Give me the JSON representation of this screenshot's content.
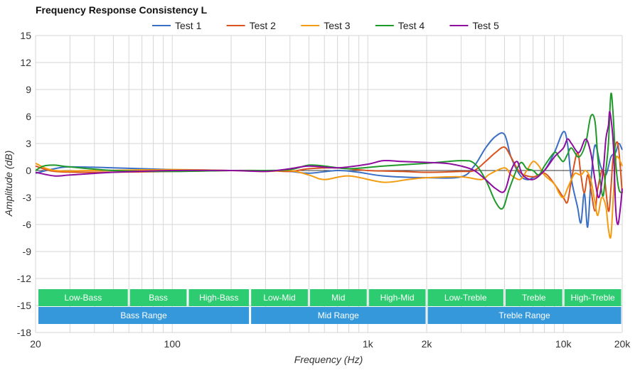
{
  "chart_data": {
    "type": "line",
    "title": "Frequency Response Consistency L",
    "xlabel": "Frequency (Hz)",
    "ylabel": "Amplitude (dB)",
    "xscale": "log",
    "xlim": [
      20,
      20000
    ],
    "ylim": [
      -18,
      15
    ],
    "grid": true,
    "legend_position": "top-center",
    "y_ticks": [
      15,
      12,
      9,
      6,
      3,
      0,
      -3,
      -6,
      -9,
      -12,
      -15,
      -18
    ],
    "x_tick_labels": [
      {
        "value": 20,
        "label": "20"
      },
      {
        "value": 100,
        "label": "100"
      },
      {
        "value": 1000,
        "label": "1k"
      },
      {
        "value": 2000,
        "label": "2k"
      },
      {
        "value": 10000,
        "label": "10k"
      },
      {
        "value": 20000,
        "label": "20k"
      }
    ],
    "bands": [
      {
        "label": "Low-Bass",
        "from": 20,
        "to": 60,
        "color": "#2ecc71",
        "row": "upper"
      },
      {
        "label": "Bass",
        "from": 60,
        "to": 120,
        "color": "#2ecc71",
        "row": "upper"
      },
      {
        "label": "High-Bass",
        "from": 120,
        "to": 250,
        "color": "#2ecc71",
        "row": "upper"
      },
      {
        "label": "Low-Mid",
        "from": 250,
        "to": 500,
        "color": "#2ecc71",
        "row": "upper"
      },
      {
        "label": "Mid",
        "from": 500,
        "to": 1000,
        "color": "#2ecc71",
        "row": "upper"
      },
      {
        "label": "High-Mid",
        "from": 1000,
        "to": 2000,
        "color": "#2ecc71",
        "row": "upper"
      },
      {
        "label": "Low-Treble",
        "from": 2000,
        "to": 5000,
        "color": "#2ecc71",
        "row": "upper"
      },
      {
        "label": "Treble",
        "from": 5000,
        "to": 10000,
        "color": "#2ecc71",
        "row": "upper"
      },
      {
        "label": "High-Treble",
        "from": 10000,
        "to": 20000,
        "color": "#2ecc71",
        "row": "upper"
      },
      {
        "label": "Bass Range",
        "from": 20,
        "to": 250,
        "color": "#3498db",
        "row": "lower"
      },
      {
        "label": "Mid Range",
        "from": 250,
        "to": 2000,
        "color": "#3498db",
        "row": "lower"
      },
      {
        "label": "Treble Range",
        "from": 2000,
        "to": 20000,
        "color": "#3498db",
        "row": "lower"
      }
    ],
    "series": [
      {
        "name": "Test 1",
        "color": "#3b6fc4",
        "points": [
          [
            20,
            -0.3
          ],
          [
            25,
            0.2
          ],
          [
            30,
            0.4
          ],
          [
            50,
            0.3
          ],
          [
            100,
            0.1
          ],
          [
            200,
            0
          ],
          [
            300,
            0
          ],
          [
            400,
            -0.1
          ],
          [
            500,
            -0.3
          ],
          [
            700,
            0
          ],
          [
            900,
            -0.2
          ],
          [
            1200,
            -0.6
          ],
          [
            2000,
            -0.8
          ],
          [
            3000,
            -0.7
          ],
          [
            3500,
            0.5
          ],
          [
            4000,
            2.5
          ],
          [
            4500,
            3.8
          ],
          [
            5000,
            4
          ],
          [
            5400,
            1.5
          ],
          [
            6000,
            -0.5
          ],
          [
            6500,
            -1
          ],
          [
            7000,
            -0.8
          ],
          [
            8000,
            0
          ],
          [
            9000,
            2
          ],
          [
            10000,
            4.3
          ],
          [
            10500,
            3
          ],
          [
            11000,
            -1
          ],
          [
            11800,
            -4
          ],
          [
            12300,
            -5.8
          ],
          [
            12800,
            -2.5
          ],
          [
            13300,
            -6.3
          ],
          [
            13800,
            -1.5
          ],
          [
            14500,
            2.8
          ],
          [
            15500,
            0.5
          ],
          [
            16500,
            -0.5
          ],
          [
            17500,
            1.5
          ],
          [
            18500,
            2
          ],
          [
            19200,
            3
          ],
          [
            20000,
            2.3
          ]
        ]
      },
      {
        "name": "Test 2",
        "color": "#d9531e",
        "points": [
          [
            20,
            0.5
          ],
          [
            25,
            -0.1
          ],
          [
            40,
            -0.2
          ],
          [
            100,
            -0.1
          ],
          [
            200,
            0
          ],
          [
            300,
            0
          ],
          [
            400,
            -0.1
          ],
          [
            500,
            0.2
          ],
          [
            700,
            0.3
          ],
          [
            1000,
            0
          ],
          [
            1500,
            -0.1
          ],
          [
            2000,
            -0.2
          ],
          [
            3000,
            -0.1
          ],
          [
            3500,
            0
          ],
          [
            4000,
            1
          ],
          [
            4500,
            2
          ],
          [
            5000,
            2.6
          ],
          [
            5400,
            1.5
          ],
          [
            6000,
            -0.2
          ],
          [
            7000,
            -0.7
          ],
          [
            8000,
            -0.3
          ],
          [
            9000,
            -1.5
          ],
          [
            10000,
            -3
          ],
          [
            10500,
            -3.5
          ],
          [
            11000,
            -1
          ],
          [
            11800,
            2
          ],
          [
            12300,
            -0.5
          ],
          [
            12800,
            -2.5
          ],
          [
            13300,
            -0.5
          ],
          [
            13800,
            -2
          ],
          [
            14500,
            -4.5
          ],
          [
            15000,
            -2
          ],
          [
            16000,
            0
          ],
          [
            17000,
            -4.5
          ],
          [
            17500,
            -2
          ],
          [
            18000,
            1.5
          ],
          [
            19000,
            3
          ],
          [
            20000,
            -2.5
          ]
        ]
      },
      {
        "name": "Test 3",
        "color": "#f39c12",
        "points": [
          [
            20,
            0.8
          ],
          [
            25,
            0
          ],
          [
            40,
            0
          ],
          [
            100,
            0.1
          ],
          [
            200,
            0
          ],
          [
            300,
            -0.1
          ],
          [
            400,
            0
          ],
          [
            500,
            -0.5
          ],
          [
            600,
            -1
          ],
          [
            800,
            -0.6
          ],
          [
            1200,
            -1.3
          ],
          [
            1600,
            -1
          ],
          [
            2000,
            -0.8
          ],
          [
            3000,
            -0.7
          ],
          [
            3800,
            -1
          ],
          [
            4200,
            -0.4
          ],
          [
            5000,
            0.3
          ],
          [
            5400,
            -0.5
          ],
          [
            6000,
            -1
          ],
          [
            6500,
            0
          ],
          [
            7000,
            1
          ],
          [
            7500,
            0.5
          ],
          [
            8000,
            -0.5
          ],
          [
            9000,
            -1.5
          ],
          [
            9500,
            -2.5
          ],
          [
            10000,
            -3
          ],
          [
            10500,
            -2
          ],
          [
            11000,
            -1
          ],
          [
            11500,
            -0.3
          ],
          [
            12300,
            -0.5
          ],
          [
            13000,
            0
          ],
          [
            13800,
            -1
          ],
          [
            14500,
            -3.5
          ],
          [
            15000,
            -5
          ],
          [
            15700,
            -3
          ],
          [
            16500,
            -4
          ],
          [
            17000,
            -6.5
          ],
          [
            17500,
            -7.3
          ],
          [
            18000,
            -3
          ],
          [
            18500,
            1
          ],
          [
            19000,
            1.5
          ],
          [
            20000,
            0.5
          ]
        ]
      },
      {
        "name": "Test 4",
        "color": "#1f9a2a",
        "points": [
          [
            20,
            0
          ],
          [
            22,
            0.5
          ],
          [
            25,
            0.6
          ],
          [
            30,
            0.4
          ],
          [
            50,
            0
          ],
          [
            100,
            -0.1
          ],
          [
            200,
            0
          ],
          [
            300,
            0
          ],
          [
            400,
            0.1
          ],
          [
            500,
            0.6
          ],
          [
            600,
            0.5
          ],
          [
            800,
            0.2
          ],
          [
            1200,
            0.5
          ],
          [
            2000,
            0.8
          ],
          [
            3000,
            1.1
          ],
          [
            3500,
            0.8
          ],
          [
            4000,
            -1
          ],
          [
            4500,
            -3.5
          ],
          [
            4900,
            -4.2
          ],
          [
            5300,
            -2
          ],
          [
            6000,
            0.8
          ],
          [
            6500,
            0.2
          ],
          [
            7000,
            0
          ],
          [
            7500,
            -0.5
          ],
          [
            8000,
            0.5
          ],
          [
            9000,
            2
          ],
          [
            9500,
            1.5
          ],
          [
            10000,
            1
          ],
          [
            10500,
            1.8
          ],
          [
            11000,
            2.5
          ],
          [
            12000,
            1.5
          ],
          [
            13000,
            3
          ],
          [
            13800,
            6
          ],
          [
            14500,
            5.5
          ],
          [
            15000,
            1.5
          ],
          [
            15500,
            -1.5
          ],
          [
            16000,
            -2.8
          ],
          [
            16500,
            0
          ],
          [
            17000,
            3
          ],
          [
            17500,
            8.5
          ],
          [
            18000,
            6
          ],
          [
            18500,
            1
          ],
          [
            19200,
            -2
          ],
          [
            20000,
            -2.5
          ]
        ]
      },
      {
        "name": "Test 5",
        "color": "#8e0c9e",
        "points": [
          [
            20,
            -0.2
          ],
          [
            25,
            -0.6
          ],
          [
            30,
            -0.5
          ],
          [
            50,
            -0.2
          ],
          [
            100,
            0
          ],
          [
            200,
            0
          ],
          [
            300,
            -0.1
          ],
          [
            400,
            0.2
          ],
          [
            500,
            0.5
          ],
          [
            700,
            0.3
          ],
          [
            1000,
            0.7
          ],
          [
            1200,
            1.1
          ],
          [
            1500,
            1
          ],
          [
            2000,
            0.9
          ],
          [
            2500,
            0.8
          ],
          [
            3000,
            0.5
          ],
          [
            3500,
            0
          ],
          [
            4000,
            -1
          ],
          [
            4500,
            -2
          ],
          [
            5000,
            -2.3
          ],
          [
            5400,
            0
          ],
          [
            5800,
            1
          ],
          [
            6200,
            -0.5
          ],
          [
            7000,
            -1
          ],
          [
            8000,
            0
          ],
          [
            9000,
            1.5
          ],
          [
            10000,
            2.5
          ],
          [
            10500,
            3.5
          ],
          [
            11000,
            3
          ],
          [
            12000,
            2
          ],
          [
            13000,
            3.5
          ],
          [
            13800,
            2
          ],
          [
            14500,
            -1
          ],
          [
            15200,
            -3
          ],
          [
            16000,
            0
          ],
          [
            16500,
            3.5
          ],
          [
            17000,
            5
          ],
          [
            17300,
            6.5
          ],
          [
            18000,
            3
          ],
          [
            18500,
            -4
          ],
          [
            19000,
            -6
          ],
          [
            19600,
            -4
          ],
          [
            20000,
            -2
          ]
        ]
      }
    ]
  }
}
